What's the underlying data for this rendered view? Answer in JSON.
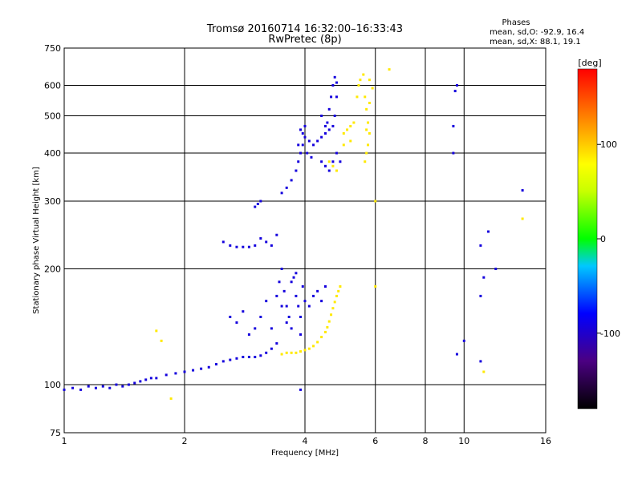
{
  "chart_data": {
    "type": "scatter",
    "title": "Tromsø 20160714  16:32:00–16:33:43",
    "subtitle": "RwPretec (8p)",
    "xlabel": "Frequency [MHz]",
    "ylabel": "Stationary phase Virtual Height [km]",
    "x_scale": "log",
    "y_scale": "log",
    "xlim": [
      1,
      16
    ],
    "ylim": [
      75,
      750
    ],
    "x_ticks": [
      1,
      2,
      4,
      6,
      8,
      10,
      16
    ],
    "x_tick_labels": [
      "1",
      "2",
      "4",
      "6",
      "8",
      "10",
      "16"
    ],
    "y_ticks": [
      75,
      100,
      200,
      300,
      400,
      500,
      600,
      750
    ],
    "y_tick_labels": [
      "75",
      "100",
      "200",
      "300",
      "400",
      "500",
      "600",
      "750"
    ],
    "grid": true,
    "phase_stats": {
      "heading": "Phases",
      "line_o": "mean, sd,O:  -92.9, 16.4",
      "line_x": "mean, sd,X:  88.1, 19.1"
    },
    "colorbar": {
      "label": "[deg]",
      "range": [
        -180,
        180
      ],
      "ticks": [
        -100,
        0,
        100
      ],
      "tick_labels": [
        "-100",
        "0",
        "100"
      ]
    },
    "series": [
      {
        "name": "O",
        "phase": -92.9,
        "points": [
          [
            1.0,
            97
          ],
          [
            1.05,
            98
          ],
          [
            1.1,
            97
          ],
          [
            1.15,
            99
          ],
          [
            1.2,
            98
          ],
          [
            1.25,
            99
          ],
          [
            1.3,
            98
          ],
          [
            1.35,
            100
          ],
          [
            1.4,
            99
          ],
          [
            1.45,
            100
          ],
          [
            1.5,
            101
          ],
          [
            1.55,
            102
          ],
          [
            1.6,
            103
          ],
          [
            1.65,
            104
          ],
          [
            1.7,
            104
          ],
          [
            1.8,
            106
          ],
          [
            1.9,
            107
          ],
          [
            2.0,
            108
          ],
          [
            2.1,
            109
          ],
          [
            2.2,
            110
          ],
          [
            2.3,
            111
          ],
          [
            2.4,
            113
          ],
          [
            2.5,
            115
          ],
          [
            2.6,
            116
          ],
          [
            2.7,
            117
          ],
          [
            2.8,
            118
          ],
          [
            2.9,
            118
          ],
          [
            3.0,
            118
          ],
          [
            3.1,
            119
          ],
          [
            3.2,
            121
          ],
          [
            3.3,
            124
          ],
          [
            3.4,
            128
          ],
          [
            2.6,
            150
          ],
          [
            2.7,
            145
          ],
          [
            2.8,
            155
          ],
          [
            2.9,
            135
          ],
          [
            3.0,
            140
          ],
          [
            3.1,
            150
          ],
          [
            3.2,
            165
          ],
          [
            3.3,
            140
          ],
          [
            3.4,
            170
          ],
          [
            3.45,
            185
          ],
          [
            3.5,
            200
          ],
          [
            3.55,
            175
          ],
          [
            3.6,
            160
          ],
          [
            3.65,
            150
          ],
          [
            3.7,
            140
          ],
          [
            3.75,
            190
          ],
          [
            3.8,
            170
          ],
          [
            3.85,
            160
          ],
          [
            3.9,
            150
          ],
          [
            3.95,
            180
          ],
          [
            4.0,
            165
          ],
          [
            4.1,
            160
          ],
          [
            4.2,
            170
          ],
          [
            4.3,
            175
          ],
          [
            4.4,
            165
          ],
          [
            4.5,
            180
          ],
          [
            3.5,
            160
          ],
          [
            3.6,
            145
          ],
          [
            3.7,
            185
          ],
          [
            3.8,
            195
          ],
          [
            3.9,
            135
          ],
          [
            3.3,
            230
          ],
          [
            3.2,
            235
          ],
          [
            3.1,
            240
          ],
          [
            3.0,
            230
          ],
          [
            2.9,
            228
          ],
          [
            2.8,
            228
          ],
          [
            2.7,
            228
          ],
          [
            2.6,
            230
          ],
          [
            2.5,
            235
          ],
          [
            3.4,
            245
          ],
          [
            3.0,
            290
          ],
          [
            3.05,
            295
          ],
          [
            3.1,
            300
          ],
          [
            3.5,
            315
          ],
          [
            3.6,
            325
          ],
          [
            3.7,
            340
          ],
          [
            3.8,
            360
          ],
          [
            3.85,
            380
          ],
          [
            3.9,
            400
          ],
          [
            3.95,
            420
          ],
          [
            4.0,
            440
          ],
          [
            4.1,
            430
          ],
          [
            4.2,
            420
          ],
          [
            4.3,
            430
          ],
          [
            4.4,
            440
          ],
          [
            4.5,
            450
          ],
          [
            4.55,
            480
          ],
          [
            4.6,
            520
          ],
          [
            4.65,
            560
          ],
          [
            4.7,
            600
          ],
          [
            4.75,
            630
          ],
          [
            4.8,
            610
          ],
          [
            4.8,
            560
          ],
          [
            4.75,
            500
          ],
          [
            4.7,
            470
          ],
          [
            4.6,
            460
          ],
          [
            4.5,
            470
          ],
          [
            4.4,
            500
          ],
          [
            3.9,
            460
          ],
          [
            4.0,
            470
          ],
          [
            4.4,
            380
          ],
          [
            4.5,
            370
          ],
          [
            4.6,
            360
          ],
          [
            4.7,
            380
          ],
          [
            4.8,
            400
          ],
          [
            4.9,
            380
          ],
          [
            3.85,
            420
          ],
          [
            3.95,
            450
          ],
          [
            4.05,
            400
          ],
          [
            4.15,
            390
          ],
          [
            9.4,
            400
          ],
          [
            9.4,
            470
          ],
          [
            9.5,
            580
          ],
          [
            9.6,
            600
          ],
          [
            11.0,
            230
          ],
          [
            11.5,
            250
          ],
          [
            12.0,
            200
          ],
          [
            11.0,
            170
          ],
          [
            14.0,
            320
          ],
          [
            11.2,
            190
          ],
          [
            10.0,
            130
          ],
          [
            9.6,
            120
          ],
          [
            3.9,
            97
          ],
          [
            11.0,
            115
          ]
        ]
      },
      {
        "name": "X",
        "phase": 88.1,
        "points": [
          [
            3.5,
            120
          ],
          [
            3.6,
            121
          ],
          [
            3.7,
            121
          ],
          [
            3.8,
            121
          ],
          [
            3.9,
            122
          ],
          [
            4.0,
            123
          ],
          [
            4.1,
            124
          ],
          [
            4.2,
            126
          ],
          [
            4.3,
            129
          ],
          [
            4.4,
            133
          ],
          [
            4.5,
            137
          ],
          [
            4.55,
            141
          ],
          [
            4.6,
            146
          ],
          [
            4.65,
            152
          ],
          [
            4.7,
            158
          ],
          [
            4.75,
            164
          ],
          [
            4.8,
            170
          ],
          [
            4.85,
            175
          ],
          [
            4.9,
            180
          ],
          [
            5.0,
            450
          ],
          [
            5.1,
            460
          ],
          [
            5.2,
            470
          ],
          [
            5.3,
            480
          ],
          [
            5.4,
            560
          ],
          [
            5.5,
            620
          ],
          [
            5.45,
            600
          ],
          [
            5.6,
            640
          ],
          [
            5.65,
            560
          ],
          [
            5.7,
            520
          ],
          [
            5.75,
            480
          ],
          [
            5.8,
            450
          ],
          [
            5.75,
            420
          ],
          [
            5.7,
            400
          ],
          [
            5.65,
            380
          ],
          [
            5.8,
            620
          ],
          [
            4.6,
            380
          ],
          [
            4.7,
            370
          ],
          [
            4.8,
            360
          ],
          [
            5.0,
            420
          ],
          [
            5.2,
            430
          ],
          [
            5.9,
            590
          ],
          [
            6.5,
            660
          ],
          [
            1.85,
            92
          ],
          [
            1.75,
            130
          ],
          [
            1.7,
            138
          ],
          [
            5.8,
            540
          ],
          [
            5.7,
            460
          ],
          [
            6.0,
            300
          ],
          [
            6.0,
            180
          ],
          [
            14.0,
            270
          ],
          [
            11.2,
            108
          ]
        ]
      }
    ]
  }
}
